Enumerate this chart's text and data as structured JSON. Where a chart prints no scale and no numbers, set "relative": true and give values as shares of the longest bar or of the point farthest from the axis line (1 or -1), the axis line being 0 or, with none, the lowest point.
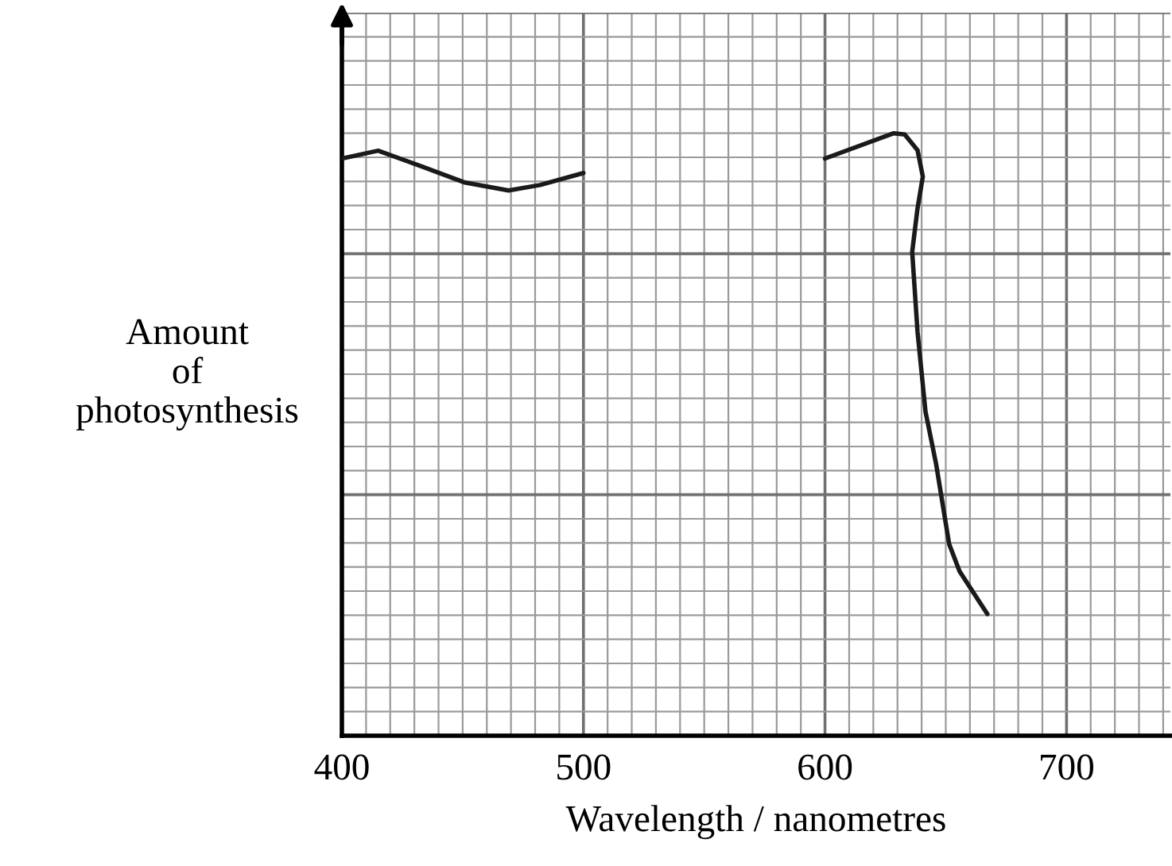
{
  "chart_data": {
    "type": "line",
    "relative": true,
    "xlabel": "Wavelength / nanometres",
    "ylabel": "Amount\nof\nphotosynthesis",
    "x": [
      400,
      415,
      433.6,
      451,
      469,
      482,
      500,
      550,
      600,
      628.5,
      633,
      638.3,
      640.5,
      638.3,
      636.1,
      638.3,
      641.6,
      646,
      651.4,
      655.7,
      667.2
    ],
    "series": [
      {
        "color": "#1a1a1a",
        "values": [
          0.958,
          0.971,
          0.944,
          0.918,
          0.905,
          0.914,
          0.934,
          null,
          0.958,
          1,
          0.998,
          0.972,
          0.928,
          0.875,
          0.803,
          0.671,
          0.538,
          0.451,
          0.318,
          0.273,
          0.202
        ]
      }
    ],
    "xlim": [
      400,
      743
    ],
    "xticks": [
      400,
      500,
      600,
      700
    ],
    "grid": true,
    "marker": "none",
    "line_style": "solid"
  }
}
